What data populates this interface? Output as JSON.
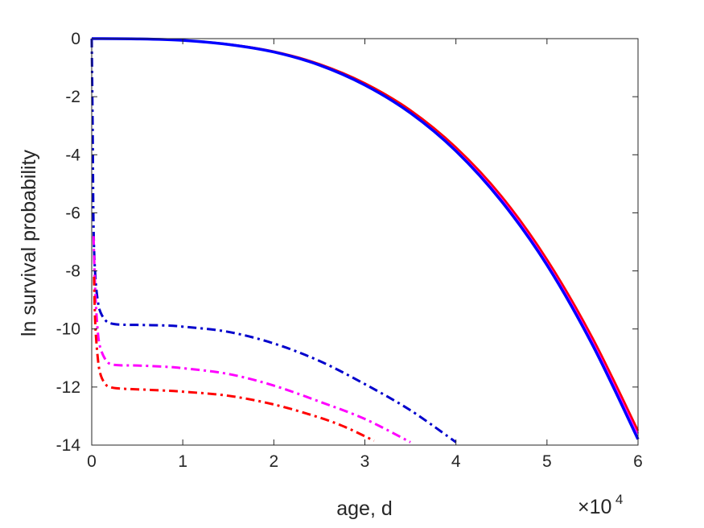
{
  "chart_data": {
    "type": "line",
    "title": "",
    "xlabel": "age, d",
    "ylabel": "ln survival probability",
    "x_exponent_label": {
      "base": "×10",
      "power": "4"
    },
    "xlim": [
      0,
      60000
    ],
    "ylim": [
      -14,
      0
    ],
    "x_ticks": [
      0,
      10000,
      20000,
      30000,
      40000,
      50000,
      60000
    ],
    "x_tick_labels": [
      "0",
      "1",
      "2",
      "3",
      "4",
      "5",
      "6"
    ],
    "y_ticks": [
      0,
      -2,
      -4,
      -6,
      -8,
      -10,
      -12,
      -14
    ],
    "y_tick_labels": [
      "0",
      "-2",
      "-4",
      "-6",
      "-8",
      "-10",
      "-12",
      "-14"
    ],
    "grid": false,
    "legend": "none",
    "series": [
      {
        "color": "#ff00ff",
        "style": "solid",
        "width": 2.5,
        "x": [
          0,
          5000,
          10000,
          15000,
          20000,
          25000,
          30000,
          35000,
          40000,
          45000,
          50000,
          55000,
          60000
        ],
        "y": [
          0,
          -0.01,
          -0.06,
          -0.19,
          -0.45,
          -0.89,
          -1.56,
          -2.5,
          -3.8,
          -5.5,
          -7.7,
          -10.4,
          -13.6
        ]
      },
      {
        "color": "#ff0000",
        "style": "solid",
        "width": 2.5,
        "x": [
          0,
          5000,
          10000,
          15000,
          20000,
          25000,
          30000,
          35000,
          40000,
          45000,
          50000,
          55000,
          60000
        ],
        "y": [
          0,
          -0.01,
          -0.06,
          -0.19,
          -0.44,
          -0.87,
          -1.53,
          -2.46,
          -3.74,
          -5.42,
          -7.6,
          -10.3,
          -13.5
        ]
      },
      {
        "color": "#0000ff",
        "style": "solid",
        "width": 3.5,
        "x": [
          0,
          5000,
          10000,
          15000,
          20000,
          25000,
          30000,
          35000,
          40000,
          45000,
          50000,
          55000,
          60000
        ],
        "y": [
          0,
          -0.01,
          -0.06,
          -0.2,
          -0.46,
          -0.91,
          -1.6,
          -2.56,
          -3.87,
          -5.6,
          -7.8,
          -10.55,
          -13.8
        ]
      },
      {
        "color": "#0000cc",
        "style": "dashdot",
        "width": 3,
        "x": [
          0,
          100,
          200,
          400,
          700,
          1000,
          1500,
          2000,
          3000,
          5000,
          8000,
          10000,
          15000,
          20000,
          25000,
          30000,
          35000,
          40000
        ],
        "y": [
          0,
          -3,
          -6.5,
          -8.2,
          -9.1,
          -9.45,
          -9.7,
          -9.8,
          -9.85,
          -9.86,
          -9.88,
          -9.92,
          -10.1,
          -10.5,
          -11.1,
          -11.9,
          -12.8,
          -13.9
        ]
      },
      {
        "color": "#ff00ff",
        "style": "dashdot",
        "width": 3,
        "x": [
          200,
          400,
          700,
          1000,
          1500,
          2000,
          3000,
          5000,
          8000,
          10000,
          15000,
          20000,
          25000,
          30000,
          35000
        ],
        "y": [
          -6.8,
          -8.8,
          -10.2,
          -10.7,
          -11.05,
          -11.2,
          -11.25,
          -11.26,
          -11.3,
          -11.35,
          -11.55,
          -11.95,
          -12.5,
          -13.1,
          -13.9
        ]
      },
      {
        "color": "#ff0000",
        "style": "dashdot",
        "width": 3,
        "x": [
          250,
          400,
          700,
          1000,
          1500,
          2000,
          3000,
          5000,
          8000,
          10000,
          15000,
          20000,
          25000,
          28000,
          31000
        ],
        "y": [
          -8.2,
          -9.9,
          -11.1,
          -11.6,
          -11.9,
          -12.0,
          -12.05,
          -12.08,
          -12.12,
          -12.16,
          -12.3,
          -12.6,
          -13.05,
          -13.4,
          -13.85
        ]
      }
    ]
  }
}
